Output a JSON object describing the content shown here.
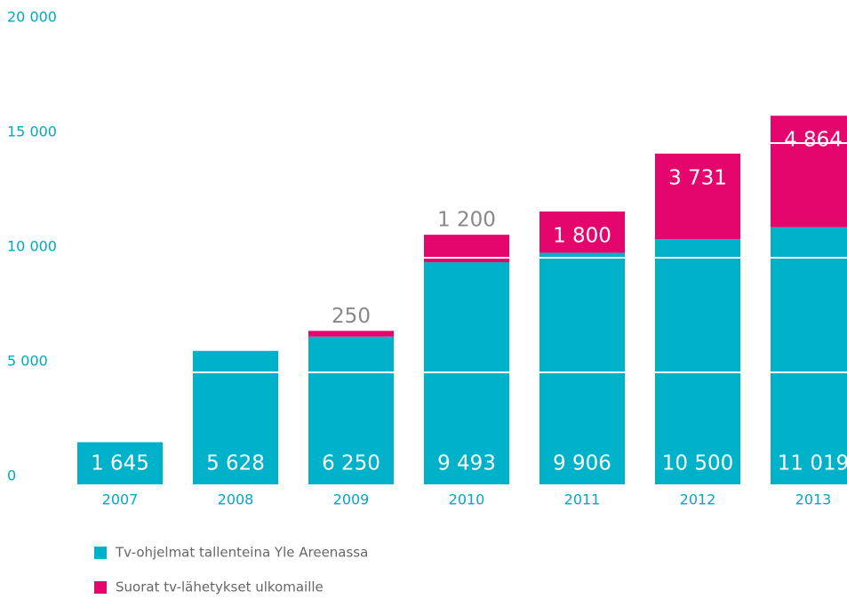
{
  "chart_data": {
    "type": "stacked_bar",
    "categories": [
      "2007",
      "2008",
      "2009",
      "2010",
      "2011",
      "2012",
      "2013"
    ],
    "series": [
      {
        "name": "Tv-ohjelmat tallenteina Yle Areenassa",
        "color": "#00b2c9",
        "values": [
          1645,
          5628,
          6250,
          9493,
          9906,
          10500,
          11019
        ],
        "value_labels": [
          "1 645",
          "5 628",
          "6 250",
          "9 493",
          "9 906",
          "10 500",
          "11 019"
        ]
      },
      {
        "name": "Suorat tv-lähetykset ulkomaille",
        "color": "#e5066d",
        "values": [
          null,
          null,
          250,
          1200,
          1800,
          3731,
          4864
        ],
        "value_labels": [
          null,
          null,
          "250",
          "1 200",
          "1 800",
          "3 731",
          "4 864"
        ]
      }
    ],
    "ylim": [
      0,
      20000
    ],
    "yticks": [
      0,
      {
        "value": 5000,
        "label": "5 000"
      },
      {
        "value": 10000,
        "label": "10 000"
      },
      {
        "value": 15000,
        "label": "15 000"
      },
      {
        "value": 20000,
        "label": "20 000"
      }
    ],
    "grid": true,
    "grid_color": "#ffffff",
    "legend": "bottom"
  }
}
